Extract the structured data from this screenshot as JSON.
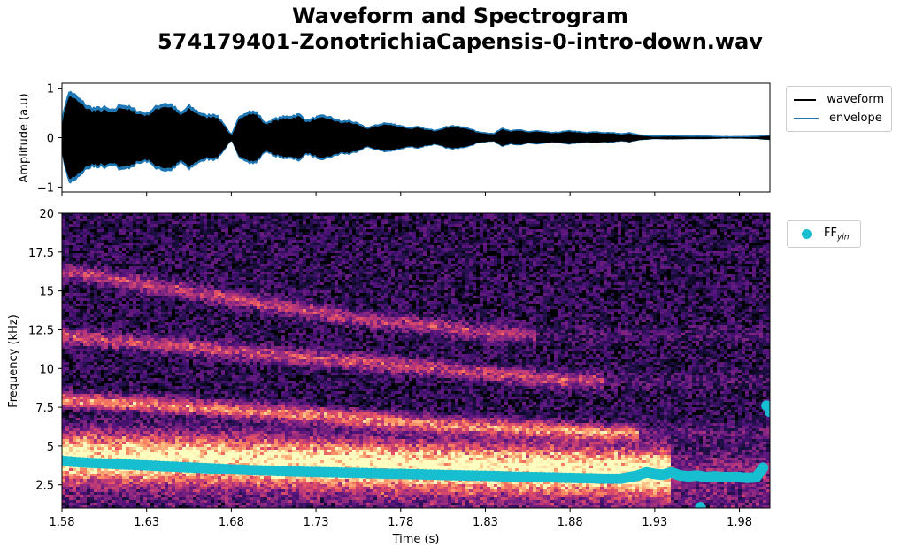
{
  "title_line1": "Waveform and Spectrogram",
  "title_line2": "574179401-ZonotrichiaCapensis-0-intro-down.wav",
  "colors": {
    "waveform": "#000000",
    "envelope": "#1f77b4",
    "ff": "#17becf",
    "spectrogram_colormap": "magma"
  },
  "waveform_legend": {
    "waveform": "waveform",
    "envelope": "envelope"
  },
  "ff_legend": {
    "label": "FF",
    "subscript": "yin"
  },
  "chart_data": [
    {
      "type": "line",
      "name": "waveform-panel",
      "ylabel": "Amplitude (a.u)",
      "xlim": [
        1.58,
        1.998
      ],
      "ylim": [
        -1.1,
        1.1
      ],
      "yticks": [
        -1,
        0,
        1
      ],
      "ytick_labels": [
        "−1",
        "0",
        "1"
      ],
      "xticks": [
        1.58,
        1.63,
        1.68,
        1.73,
        1.78,
        1.83,
        1.88,
        1.93,
        1.98
      ],
      "grid": false,
      "legend_placement": "outside-top-right",
      "series": [
        {
          "name": "envelope",
          "x": [
            1.58,
            1.583,
            1.585,
            1.59,
            1.595,
            1.6,
            1.605,
            1.61,
            1.615,
            1.62,
            1.625,
            1.63,
            1.635,
            1.64,
            1.645,
            1.65,
            1.655,
            1.66,
            1.665,
            1.67,
            1.675,
            1.68,
            1.685,
            1.69,
            1.695,
            1.7,
            1.705,
            1.71,
            1.715,
            1.72,
            1.725,
            1.73,
            1.735,
            1.74,
            1.745,
            1.75,
            1.755,
            1.76,
            1.765,
            1.77,
            1.775,
            1.78,
            1.785,
            1.79,
            1.795,
            1.8,
            1.805,
            1.81,
            1.815,
            1.82,
            1.825,
            1.83,
            1.835,
            1.84,
            1.845,
            1.85,
            1.855,
            1.86,
            1.865,
            1.87,
            1.875,
            1.88,
            1.885,
            1.89,
            1.895,
            1.9,
            1.905,
            1.91,
            1.915,
            1.92,
            1.93,
            1.94,
            1.95,
            1.96,
            1.97,
            1.98,
            1.99,
            1.998
          ],
          "values": [
            0.35,
            0.85,
            0.95,
            0.8,
            0.65,
            0.6,
            0.62,
            0.55,
            0.7,
            0.62,
            0.55,
            0.5,
            0.62,
            0.72,
            0.68,
            0.5,
            0.65,
            0.55,
            0.45,
            0.5,
            0.32,
            0.05,
            0.45,
            0.55,
            0.52,
            0.3,
            0.38,
            0.42,
            0.45,
            0.48,
            0.35,
            0.42,
            0.45,
            0.4,
            0.33,
            0.35,
            0.28,
            0.2,
            0.25,
            0.3,
            0.28,
            0.25,
            0.2,
            0.22,
            0.18,
            0.15,
            0.2,
            0.25,
            0.22,
            0.2,
            0.12,
            0.1,
            0.08,
            0.2,
            0.14,
            0.16,
            0.12,
            0.14,
            0.12,
            0.1,
            0.12,
            0.14,
            0.12,
            0.1,
            0.12,
            0.1,
            0.1,
            0.08,
            0.1,
            0.06,
            0.03,
            0.04,
            0.03,
            0.03,
            0.02,
            0.02,
            0.03,
            0.05
          ]
        },
        {
          "name": "waveform",
          "note_fill": "symmetric oscillation bounded by envelope"
        }
      ]
    },
    {
      "type": "heatmap",
      "name": "spectrogram-panel",
      "xlabel": "Time (s)",
      "ylabel": "Frequency (kHz)",
      "xlim": [
        1.58,
        1.998
      ],
      "ylim": [
        1.0,
        20.0
      ],
      "xticks": [
        1.58,
        1.63,
        1.68,
        1.73,
        1.78,
        1.83,
        1.88,
        1.93,
        1.98
      ],
      "xtick_labels": [
        "1.58",
        "1.63",
        "1.68",
        "1.73",
        "1.78",
        "1.83",
        "1.88",
        "1.93",
        "1.98"
      ],
      "yticks": [
        2.5,
        5,
        7.5,
        10,
        12.5,
        15,
        17.5,
        20
      ],
      "ytick_labels": [
        "2.5",
        "5",
        "7.5",
        "10",
        "12.5",
        "15",
        "17.5",
        "20"
      ],
      "grid": false,
      "legend_placement": "outside-top-right",
      "harmonics": [
        {
          "x": [
            1.58,
            1.7,
            1.8,
            1.92
          ],
          "khz": [
            4.3,
            4.0,
            3.6,
            3.3
          ],
          "strength": 0.95
        },
        {
          "x": [
            1.58,
            1.7,
            1.8,
            1.9
          ],
          "khz": [
            8.0,
            7.2,
            6.4,
            5.9
          ],
          "strength": 0.6
        },
        {
          "x": [
            1.58,
            1.7,
            1.8,
            1.88
          ],
          "khz": [
            12.1,
            10.9,
            10.0,
            9.2
          ],
          "strength": 0.42
        },
        {
          "x": [
            1.58,
            1.68,
            1.75,
            1.84
          ],
          "khz": [
            16.3,
            14.5,
            13.3,
            12.2
          ],
          "strength": 0.38
        }
      ],
      "series": [
        {
          "name": "FF_yin",
          "type": "scatter",
          "x": [
            1.58,
            1.59,
            1.6,
            1.61,
            1.62,
            1.63,
            1.64,
            1.65,
            1.66,
            1.67,
            1.68,
            1.69,
            1.7,
            1.71,
            1.72,
            1.73,
            1.74,
            1.75,
            1.76,
            1.77,
            1.78,
            1.79,
            1.8,
            1.81,
            1.82,
            1.83,
            1.84,
            1.85,
            1.86,
            1.87,
            1.88,
            1.89,
            1.9,
            1.91,
            1.915,
            1.92,
            1.925,
            1.93,
            1.935,
            1.94,
            1.945,
            1.95,
            1.955,
            1.96,
            1.965,
            1.97,
            1.975,
            1.98,
            1.985,
            1.99,
            1.994,
            1.996,
            1.998
          ],
          "values": [
            4.05,
            3.95,
            3.9,
            3.85,
            3.8,
            3.75,
            3.7,
            3.65,
            3.6,
            3.55,
            3.5,
            3.45,
            3.42,
            3.38,
            3.35,
            3.32,
            3.3,
            3.27,
            3.25,
            3.22,
            3.2,
            3.18,
            3.15,
            3.12,
            3.1,
            3.08,
            3.05,
            3.02,
            3.0,
            2.98,
            2.95,
            2.93,
            2.9,
            2.9,
            3.0,
            3.1,
            3.3,
            3.2,
            3.15,
            3.3,
            3.1,
            3.05,
            3.1,
            3.0,
            3.05,
            3.0,
            3.0,
            3.0,
            2.95,
            3.0,
            3.6,
            7.6,
            7.2
          ]
        },
        {
          "name": "FF_yin_outlier",
          "type": "scatter",
          "x": [
            1.957
          ],
          "values": [
            1.05
          ]
        }
      ]
    }
  ]
}
